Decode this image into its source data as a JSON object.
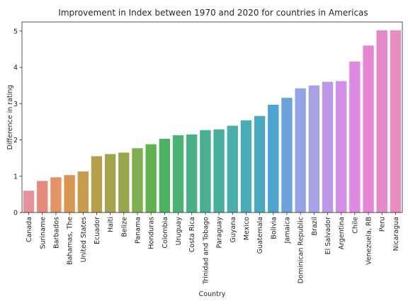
{
  "chart_data": {
    "type": "bar",
    "title": "Improvement in Index between 1970 and 2020 for countries in Americas",
    "xlabel": "Country",
    "ylabel": "Difference in rating",
    "ylim": [
      0,
      5.25
    ],
    "yticks": [
      0,
      1,
      2,
      3,
      4,
      5
    ],
    "grid": false,
    "legend": "none",
    "categories": [
      "Canada",
      "Suriname",
      "Barbados",
      "Bahamas, The",
      "United States",
      "Ecuador",
      "Haiti",
      "Belize",
      "Panama",
      "Honduras",
      "Colombia",
      "Uruguay",
      "Costa Rica",
      "Trinidad and Tobago",
      "Paraguay",
      "Guyana",
      "Mexico",
      "Guatemala",
      "Bolivia",
      "Jamaica",
      "Dominican Republic",
      "Brazil",
      "El Salvador",
      "Argentina",
      "Chile",
      "Venezuela, RB",
      "Peru",
      "Nicaragua"
    ],
    "values": [
      0.6,
      0.87,
      0.97,
      1.03,
      1.13,
      1.55,
      1.61,
      1.65,
      1.77,
      1.88,
      2.03,
      2.13,
      2.15,
      2.27,
      2.29,
      2.39,
      2.54,
      2.66,
      2.97,
      3.16,
      3.42,
      3.5,
      3.6,
      3.62,
      4.16,
      4.6,
      5.02,
      5.02
    ],
    "colors": [
      "#e8919a",
      "#e6897a",
      "#e59365",
      "#d99651",
      "#c89b4a",
      "#b3a049",
      "#a5a34c",
      "#98a64d",
      "#7faf4c",
      "#5fb34c",
      "#4bb25e",
      "#4ab275",
      "#49b086",
      "#48af93",
      "#48ae9e",
      "#49adaa",
      "#4aacb5",
      "#4aa9c1",
      "#4ca5d1",
      "#6aa2dc",
      "#93a3e3",
      "#a9a1e6",
      "#bc97e8",
      "#d38ee6",
      "#de88e2",
      "#e585d4",
      "#e689c8",
      "#e78ebf"
    ]
  }
}
